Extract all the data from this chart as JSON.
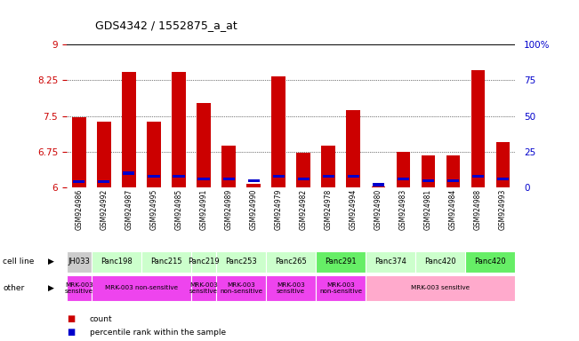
{
  "title": "GDS4342 / 1552875_a_at",
  "samples": [
    "GSM924986",
    "GSM924992",
    "GSM924987",
    "GSM924995",
    "GSM924985",
    "GSM924991",
    "GSM924989",
    "GSM924990",
    "GSM924979",
    "GSM924982",
    "GSM924978",
    "GSM924994",
    "GSM924980",
    "GSM924983",
    "GSM924981",
    "GSM924984",
    "GSM924988",
    "GSM924993"
  ],
  "count_values": [
    7.48,
    7.38,
    8.42,
    7.38,
    8.42,
    7.78,
    6.88,
    6.08,
    8.32,
    6.72,
    6.88,
    7.62,
    6.02,
    6.75,
    6.68,
    6.68,
    8.45,
    6.95
  ],
  "percentile_values": [
    4,
    4,
    10,
    8,
    8,
    6,
    6,
    5,
    8,
    6,
    8,
    8,
    2,
    6,
    5,
    5,
    8,
    6
  ],
  "ymin": 6.0,
  "ymax": 9.0,
  "yticks": [
    6.0,
    6.75,
    7.5,
    8.25,
    9.0
  ],
  "ytick_labels": [
    "6",
    "6.75",
    "7.5",
    "8.25",
    "9"
  ],
  "right_ytick_labels": [
    "0",
    "25",
    "50",
    "75",
    "100%"
  ],
  "bar_color": "#cc0000",
  "percentile_color": "#0000cc",
  "cell_line_groups": [
    {
      "name": "JH033",
      "start": 0,
      "end": 1,
      "color": "#cccccc"
    },
    {
      "name": "Panc198",
      "start": 1,
      "end": 3,
      "color": "#ccffcc"
    },
    {
      "name": "Panc215",
      "start": 3,
      "end": 5,
      "color": "#ccffcc"
    },
    {
      "name": "Panc219",
      "start": 5,
      "end": 6,
      "color": "#ccffcc"
    },
    {
      "name": "Panc253",
      "start": 6,
      "end": 8,
      "color": "#ccffcc"
    },
    {
      "name": "Panc265",
      "start": 8,
      "end": 10,
      "color": "#ccffcc"
    },
    {
      "name": "Panc291",
      "start": 10,
      "end": 12,
      "color": "#66ee66"
    },
    {
      "name": "Panc374",
      "start": 12,
      "end": 14,
      "color": "#ccffcc"
    },
    {
      "name": "Panc420",
      "start": 14,
      "end": 16,
      "color": "#ccffcc"
    },
    {
      "name": "Panc420",
      "start": 16,
      "end": 18,
      "color": "#66ee66"
    }
  ],
  "other_groups": [
    {
      "label": "MRK-003\nsensitive",
      "start": 0,
      "end": 1,
      "color": "#ee44ee"
    },
    {
      "label": "MRK-003 non-sensitive",
      "start": 1,
      "end": 5,
      "color": "#ee44ee"
    },
    {
      "label": "MRK-003\nsensitive",
      "start": 5,
      "end": 6,
      "color": "#ee44ee"
    },
    {
      "label": "MRK-003\nnon-sensitive",
      "start": 6,
      "end": 8,
      "color": "#ee44ee"
    },
    {
      "label": "MRK-003\nsensitive",
      "start": 8,
      "end": 10,
      "color": "#ee44ee"
    },
    {
      "label": "MRK-003\nnon-sensitive",
      "start": 10,
      "end": 12,
      "color": "#ee44ee"
    },
    {
      "label": "MRK-003 sensitive",
      "start": 12,
      "end": 18,
      "color": "#ffaacc"
    }
  ],
  "tick_label_color_left": "#cc0000",
  "tick_label_color_right": "#0000cc"
}
